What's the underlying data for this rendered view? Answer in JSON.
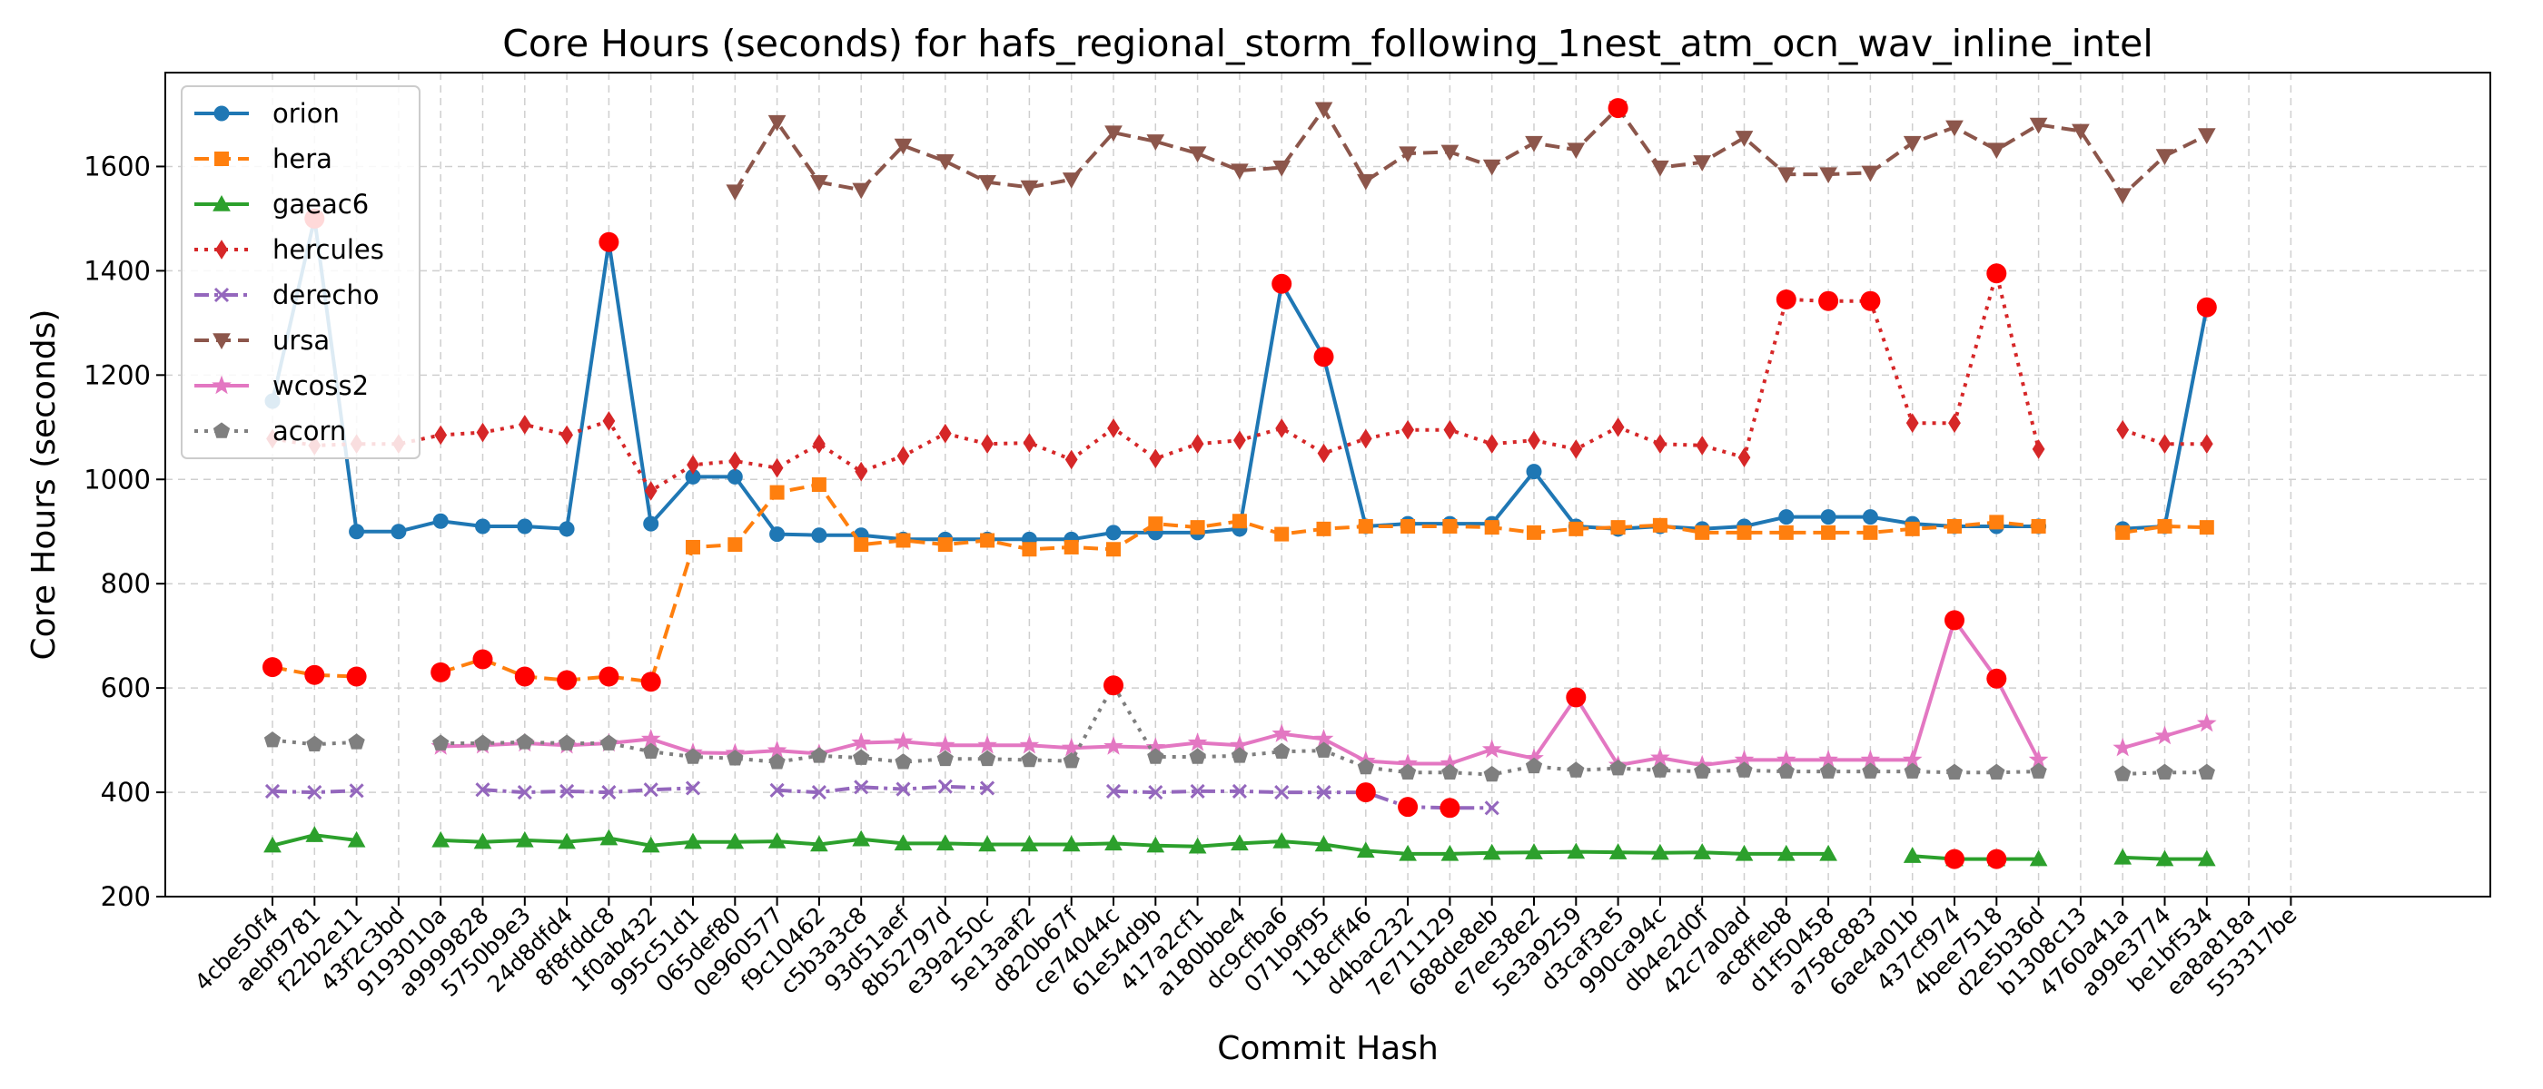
{
  "chart_data": {
    "type": "line",
    "title": "Core Hours (seconds) for hafs_regional_storm_following_1nest_atm_ocn_wav_inline_intel",
    "xlabel": "Commit Hash",
    "ylabel": "Core Hours (seconds)",
    "ylim": [
      200,
      1780
    ],
    "yticks": [
      200,
      400,
      600,
      800,
      1000,
      1200,
      1400,
      1600
    ],
    "grid": true,
    "legend_position": "top-left",
    "categories": [
      "4cbe50f4",
      "aebf9781",
      "f22b2e11",
      "43f2c3bd",
      "9193010a",
      "a9999828",
      "5750b9e3",
      "24d8dfd4",
      "8f8fddc8",
      "1f0ab432",
      "995c51d1",
      "065def80",
      "0e960577",
      "f9c10462",
      "c5b3a3c8",
      "93d51aef",
      "8b52797d",
      "e39a250c",
      "5e13aaf2",
      "d820b67f",
      "ce74044c",
      "61e54d9b",
      "417a2cf1",
      "a180bbe4",
      "dc9cfba6",
      "071b9f95",
      "118cff46",
      "d4bac232",
      "7e711129",
      "688de8eb",
      "e7ee38e2",
      "5e3a9259",
      "d3caf3e5",
      "990ca94c",
      "db4e2d0f",
      "42c7a0ad",
      "ac8ffeb8",
      "d1f50458",
      "a758c883",
      "6ae4a01b",
      "437cf974",
      "4bee7518",
      "d2e5b36d",
      "b1308c13",
      "4760a41a",
      "a99e3774",
      "be1bf534",
      "ea8a818a",
      "553317be"
    ],
    "series": [
      {
        "name": "orion",
        "color": "#1f77b4",
        "dash": "solid",
        "marker": "circle",
        "values": [
          1150,
          1500,
          900,
          900,
          920,
          910,
          910,
          905,
          1455,
          915,
          1005,
          1005,
          895,
          893,
          893,
          885,
          885,
          885,
          885,
          885,
          898,
          898,
          898,
          905,
          1375,
          1235,
          910,
          915,
          915,
          915,
          1015,
          910,
          905,
          910,
          905,
          910,
          928,
          928,
          928,
          915,
          910,
          910,
          910,
          null,
          905,
          910,
          1330,
          null,
          null
        ]
      },
      {
        "name": "hera",
        "color": "#ff7f0e",
        "dash": "dashed",
        "marker": "square",
        "values": [
          640,
          625,
          622,
          null,
          630,
          655,
          622,
          615,
          622,
          612,
          870,
          875,
          975,
          990,
          875,
          883,
          875,
          883,
          866,
          870,
          866,
          915,
          908,
          920,
          895,
          905,
          910,
          910,
          910,
          908,
          898,
          905,
          908,
          912,
          898,
          898,
          898,
          898,
          898,
          905,
          910,
          918,
          910,
          null,
          898,
          910,
          908,
          null,
          null
        ]
      },
      {
        "name": "gaeac6",
        "color": "#2ca02c",
        "dash": "solid",
        "marker": "triangle-up",
        "values": [
          298,
          318,
          308,
          null,
          308,
          305,
          308,
          305,
          312,
          298,
          305,
          305,
          306,
          300,
          310,
          302,
          302,
          300,
          300,
          300,
          302,
          298,
          296,
          302,
          306,
          300,
          288,
          282,
          282,
          284,
          285,
          286,
          285,
          284,
          285,
          282,
          282,
          282,
          null,
          278,
          272,
          272,
          272,
          null,
          275,
          272,
          272,
          null,
          null
        ]
      },
      {
        "name": "hercules",
        "color": "#d62728",
        "dash": "dotted",
        "marker": "diamond",
        "values": [
          1078,
          1065,
          1068,
          1068,
          1085,
          1090,
          1105,
          1085,
          1112,
          978,
          1028,
          1035,
          1022,
          1068,
          1015,
          1045,
          1088,
          1068,
          1070,
          1038,
          1098,
          1040,
          1068,
          1075,
          1098,
          1050,
          1078,
          1095,
          1095,
          1068,
          1075,
          1058,
          1100,
          1068,
          1065,
          1042,
          1345,
          1342,
          1342,
          1108,
          1108,
          1395,
          1058,
          null,
          1095,
          1068,
          1068,
          null,
          null
        ]
      },
      {
        "name": "derecho",
        "color": "#9467bd",
        "dash": "dashdot",
        "marker": "x",
        "values": [
          402,
          400,
          403,
          null,
          null,
          405,
          400,
          402,
          400,
          405,
          408,
          null,
          404,
          400,
          410,
          406,
          411,
          408,
          null,
          null,
          402,
          400,
          402,
          402,
          400,
          400,
          400,
          372,
          370,
          370,
          null,
          null,
          null,
          null,
          null,
          null,
          null,
          null,
          null,
          null,
          null,
          null,
          null,
          null,
          null,
          null,
          null,
          null,
          null
        ]
      },
      {
        "name": "ursa",
        "color": "#8c564b",
        "dash": "dashed",
        "marker": "triangle-down",
        "values": [
          null,
          null,
          null,
          null,
          null,
          null,
          null,
          null,
          null,
          null,
          null,
          1552,
          1685,
          1570,
          1555,
          1640,
          1610,
          1570,
          1560,
          1575,
          1665,
          1648,
          1625,
          1592,
          1598,
          1710,
          1572,
          1625,
          1628,
          1600,
          1645,
          1632,
          1712,
          1598,
          1608,
          1655,
          1585,
          1585,
          1588,
          1645,
          1675,
          1632,
          1680,
          1668,
          1545,
          1620,
          1660,
          null,
          null
        ]
      },
      {
        "name": "wcoss2",
        "color": "#e377c2",
        "dash": "solid",
        "marker": "star",
        "values": [
          null,
          null,
          null,
          null,
          488,
          490,
          494,
          490,
          494,
          502,
          476,
          475,
          480,
          474,
          495,
          497,
          490,
          490,
          490,
          485,
          488,
          486,
          495,
          490,
          512,
          502,
          460,
          455,
          455,
          482,
          465,
          582,
          452,
          466,
          452,
          462,
          462,
          462,
          462,
          462,
          730,
          618,
          462,
          null,
          485,
          508,
          532,
          null,
          null
        ]
      },
      {
        "name": "acorn",
        "color": "#7f7f7f",
        "dash": "dotted",
        "marker": "pentagon",
        "values": [
          500,
          492,
          496,
          null,
          494,
          494,
          496,
          494,
          494,
          478,
          468,
          465,
          458,
          470,
          466,
          458,
          464,
          464,
          462,
          460,
          605,
          468,
          468,
          470,
          478,
          480,
          448,
          438,
          438,
          434,
          450,
          442,
          446,
          442,
          440,
          442,
          440,
          440,
          440,
          440,
          438,
          438,
          440,
          null,
          435,
          438,
          438,
          null,
          null
        ]
      }
    ],
    "highlight_color": "#ff0000",
    "highlights": [
      {
        "series": "orion",
        "indices": [
          1,
          8,
          24,
          25,
          46
        ]
      },
      {
        "series": "hera",
        "indices": [
          0,
          1,
          2,
          4,
          5,
          6,
          7,
          8,
          9
        ]
      },
      {
        "series": "gaeac6",
        "indices": [
          40,
          41
        ]
      },
      {
        "series": "hercules",
        "indices": [
          36,
          37,
          38,
          41
        ]
      },
      {
        "series": "derecho",
        "indices": [
          26,
          27,
          28
        ]
      },
      {
        "series": "ursa",
        "indices": [
          32
        ]
      },
      {
        "series": "wcoss2",
        "indices": [
          31,
          40,
          41
        ]
      },
      {
        "series": "acorn",
        "indices": [
          20
        ]
      }
    ]
  }
}
